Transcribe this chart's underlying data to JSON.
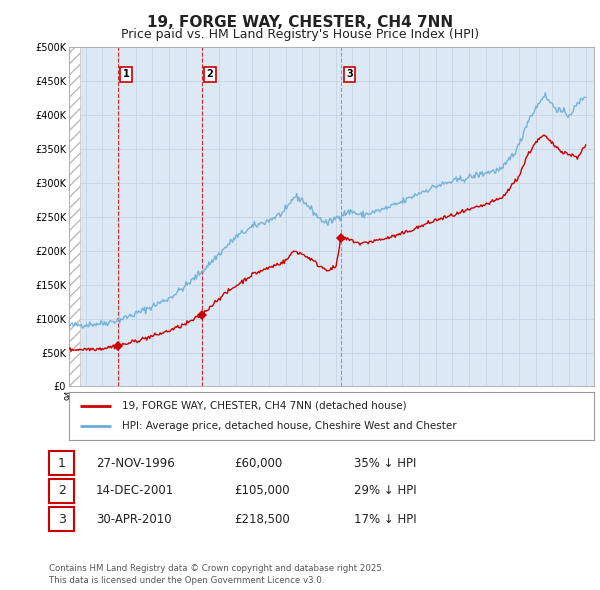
{
  "title": "19, FORGE WAY, CHESTER, CH4 7NN",
  "subtitle": "Price paid vs. HM Land Registry's House Price Index (HPI)",
  "title_fontsize": 11,
  "subtitle_fontsize": 9,
  "background_color": "#ffffff",
  "grid_color": "#c8d8e8",
  "plot_bg_color": "#dce8f4",
  "hpi_color": "#6aaed6",
  "price_color": "#cc0000",
  "ylim": [
    0,
    500000
  ],
  "yticks": [
    0,
    50000,
    100000,
    150000,
    200000,
    250000,
    300000,
    350000,
    400000,
    450000,
    500000
  ],
  "ytick_labels": [
    "£0",
    "£50K",
    "£100K",
    "£150K",
    "£200K",
    "£250K",
    "£300K",
    "£350K",
    "£400K",
    "£450K",
    "£500K"
  ],
  "purchases": [
    {
      "label": "1",
      "date_num": 1996.91,
      "price": 60000,
      "date_str": "27-NOV-1996",
      "pct": "35% ↓ HPI",
      "vline_color": "#cc0000",
      "vline_style": "--"
    },
    {
      "label": "2",
      "date_num": 2001.95,
      "price": 105000,
      "date_str": "14-DEC-2001",
      "pct": "29% ↓ HPI",
      "vline_color": "#cc0000",
      "vline_style": "--"
    },
    {
      "label": "3",
      "date_num": 2010.33,
      "price": 218500,
      "date_str": "30-APR-2010",
      "pct": "17% ↓ HPI",
      "vline_color": "#888888",
      "vline_style": "--"
    }
  ],
  "legend_entries": [
    {
      "label": "19, FORGE WAY, CHESTER, CH4 7NN (detached house)",
      "color": "#cc0000"
    },
    {
      "label": "HPI: Average price, detached house, Cheshire West and Chester",
      "color": "#6aaed6"
    }
  ],
  "footer": "Contains HM Land Registry data © Crown copyright and database right 2025.\nThis data is licensed under the Open Government Licence v3.0.",
  "table": [
    [
      "1",
      "27-NOV-1996",
      "£60,000",
      "35% ↓ HPI"
    ],
    [
      "2",
      "14-DEC-2001",
      "£105,000",
      "29% ↓ HPI"
    ],
    [
      "3",
      "30-APR-2010",
      "£218,500",
      "17% ↓ HPI"
    ]
  ]
}
